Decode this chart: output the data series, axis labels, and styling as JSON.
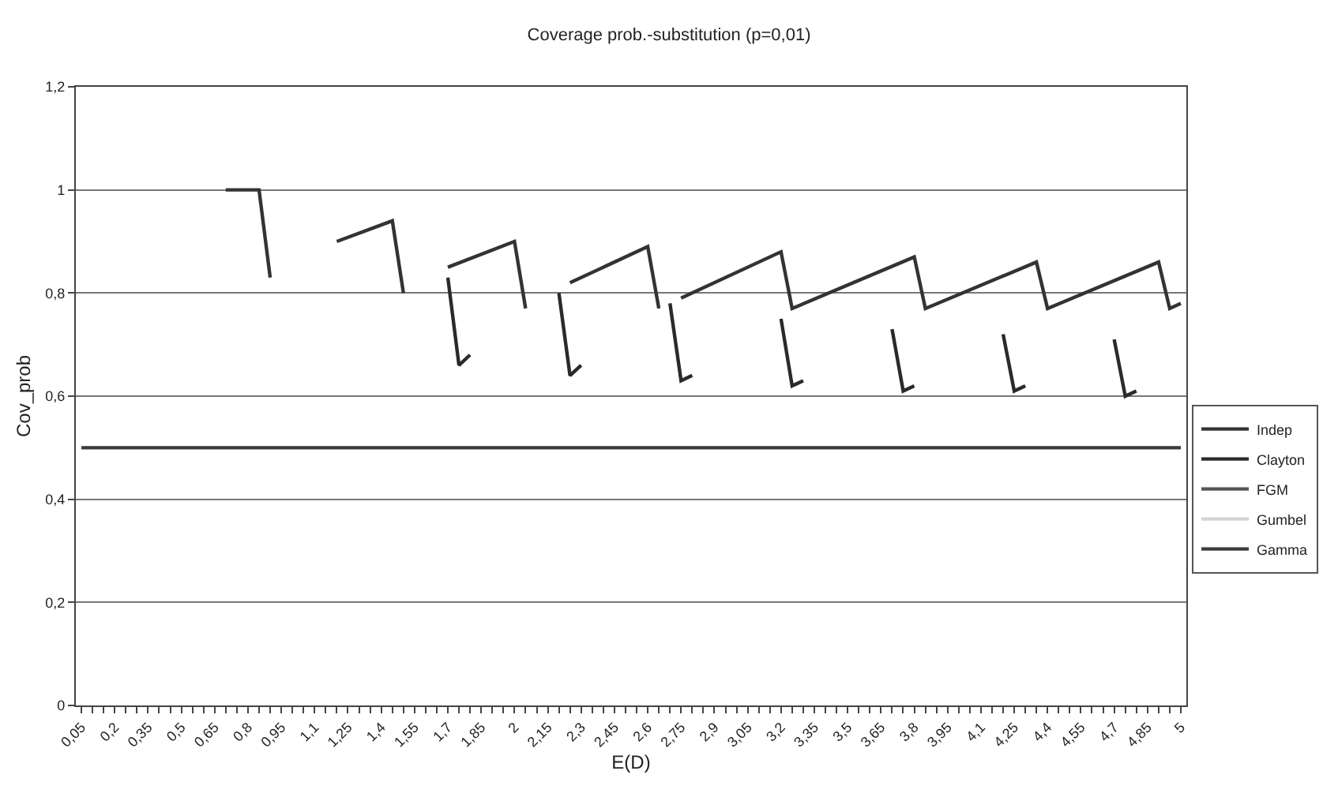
{
  "chart_data": {
    "type": "line",
    "title": "Coverage prob.-substitution (p=0,01)",
    "xlabel": "E(D)",
    "ylabel": "Cov_prob",
    "xlim": [
      0.025,
      5.025
    ],
    "xticks": [
      {
        "value": 0.05,
        "label": "0,05"
      },
      {
        "value": 0.1,
        "label": null
      },
      {
        "value": 0.15,
        "label": null
      },
      {
        "value": 0.2,
        "label": "0,2"
      },
      {
        "value": 0.25,
        "label": null
      },
      {
        "value": 0.3,
        "label": null
      },
      {
        "value": 0.35,
        "label": "0,35"
      },
      {
        "value": 0.4,
        "label": null
      },
      {
        "value": 0.45,
        "label": null
      },
      {
        "value": 0.5,
        "label": "0,5"
      },
      {
        "value": 0.55,
        "label": null
      },
      {
        "value": 0.6,
        "label": null
      },
      {
        "value": 0.65,
        "label": "0,65"
      },
      {
        "value": 0.7,
        "label": null
      },
      {
        "value": 0.75,
        "label": null
      },
      {
        "value": 0.8,
        "label": "0,8"
      },
      {
        "value": 0.85,
        "label": null
      },
      {
        "value": 0.9,
        "label": null
      },
      {
        "value": 0.95,
        "label": "0,95"
      },
      {
        "value": 1.0,
        "label": null
      },
      {
        "value": 1.05,
        "label": null
      },
      {
        "value": 1.1,
        "label": "1,1"
      },
      {
        "value": 1.15,
        "label": null
      },
      {
        "value": 1.2,
        "label": null
      },
      {
        "value": 1.25,
        "label": "1,25"
      },
      {
        "value": 1.3,
        "label": null
      },
      {
        "value": 1.35,
        "label": null
      },
      {
        "value": 1.4,
        "label": "1,4"
      },
      {
        "value": 1.45,
        "label": null
      },
      {
        "value": 1.5,
        "label": null
      },
      {
        "value": 1.55,
        "label": "1,55"
      },
      {
        "value": 1.6,
        "label": null
      },
      {
        "value": 1.65,
        "label": null
      },
      {
        "value": 1.7,
        "label": "1,7"
      },
      {
        "value": 1.75,
        "label": null
      },
      {
        "value": 1.8,
        "label": null
      },
      {
        "value": 1.85,
        "label": "1,85"
      },
      {
        "value": 1.9,
        "label": null
      },
      {
        "value": 1.95,
        "label": null
      },
      {
        "value": 2.0,
        "label": "2"
      },
      {
        "value": 2.05,
        "label": null
      },
      {
        "value": 2.1,
        "label": null
      },
      {
        "value": 2.15,
        "label": "2,15"
      },
      {
        "value": 2.2,
        "label": null
      },
      {
        "value": 2.25,
        "label": null
      },
      {
        "value": 2.3,
        "label": "2,3"
      },
      {
        "value": 2.35,
        "label": null
      },
      {
        "value": 2.4,
        "label": null
      },
      {
        "value": 2.45,
        "label": "2,45"
      },
      {
        "value": 2.5,
        "label": null
      },
      {
        "value": 2.55,
        "label": null
      },
      {
        "value": 2.6,
        "label": "2,6"
      },
      {
        "value": 2.65,
        "label": null
      },
      {
        "value": 2.7,
        "label": null
      },
      {
        "value": 2.75,
        "label": "2,75"
      },
      {
        "value": 2.8,
        "label": null
      },
      {
        "value": 2.85,
        "label": null
      },
      {
        "value": 2.9,
        "label": "2,9"
      },
      {
        "value": 2.95,
        "label": null
      },
      {
        "value": 3.0,
        "label": null
      },
      {
        "value": 3.05,
        "label": "3,05"
      },
      {
        "value": 3.1,
        "label": null
      },
      {
        "value": 3.15,
        "label": null
      },
      {
        "value": 3.2,
        "label": "3,2"
      },
      {
        "value": 3.25,
        "label": null
      },
      {
        "value": 3.3,
        "label": null
      },
      {
        "value": 3.35,
        "label": "3,35"
      },
      {
        "value": 3.4,
        "label": null
      },
      {
        "value": 3.45,
        "label": null
      },
      {
        "value": 3.5,
        "label": "3,5"
      },
      {
        "value": 3.55,
        "label": null
      },
      {
        "value": 3.6,
        "label": null
      },
      {
        "value": 3.65,
        "label": "3,65"
      },
      {
        "value": 3.7,
        "label": null
      },
      {
        "value": 3.75,
        "label": null
      },
      {
        "value": 3.8,
        "label": "3,8"
      },
      {
        "value": 3.85,
        "label": null
      },
      {
        "value": 3.9,
        "label": null
      },
      {
        "value": 3.95,
        "label": "3,95"
      },
      {
        "value": 4.0,
        "label": null
      },
      {
        "value": 4.05,
        "label": null
      },
      {
        "value": 4.1,
        "label": "4,1"
      },
      {
        "value": 4.15,
        "label": null
      },
      {
        "value": 4.2,
        "label": null
      },
      {
        "value": 4.25,
        "label": "4,25"
      },
      {
        "value": 4.3,
        "label": null
      },
      {
        "value": 4.35,
        "label": null
      },
      {
        "value": 4.4,
        "label": "4,4"
      },
      {
        "value": 4.45,
        "label": null
      },
      {
        "value": 4.5,
        "label": null
      },
      {
        "value": 4.55,
        "label": "4,55"
      },
      {
        "value": 4.6,
        "label": null
      },
      {
        "value": 4.65,
        "label": null
      },
      {
        "value": 4.7,
        "label": "4,7"
      },
      {
        "value": 4.75,
        "label": null
      },
      {
        "value": 4.8,
        "label": null
      },
      {
        "value": 4.85,
        "label": "4,85"
      },
      {
        "value": 4.9,
        "label": null
      },
      {
        "value": 4.95,
        "label": null
      },
      {
        "value": 5.0,
        "label": "5"
      }
    ],
    "ylim": [
      0,
      1.2
    ],
    "yticks": [
      0,
      {
        "value": 0.2,
        "label": "0,2"
      },
      {
        "value": 0.4,
        "label": "0,4"
      },
      {
        "value": 0.6,
        "label": "0,6"
      },
      {
        "value": 0.8,
        "label": "0,8"
      },
      1,
      {
        "value": 1.2,
        "label": "1,2"
      }
    ],
    "grid": "y",
    "legend": "right",
    "marker": "none",
    "line_style": "solid",
    "series": [
      {
        "name": "Indep",
        "color": "#333333",
        "x": [
          0.7,
          0.85,
          0.9,
          1.0,
          1.2,
          1.45,
          1.5,
          1.6,
          1.7,
          2.0,
          2.05,
          2.15,
          2.25,
          2.6,
          2.65,
          2.7,
          2.75,
          3.2,
          3.25,
          3.8,
          3.85,
          4.35,
          4.4,
          4.9,
          4.95,
          5.0
        ],
        "values": [
          1,
          1,
          0.83,
          null,
          0.9,
          0.94,
          0.8,
          null,
          0.85,
          0.9,
          0.77,
          null,
          0.82,
          0.89,
          0.77,
          null,
          0.79,
          0.88,
          0.77,
          0.87,
          0.77,
          0.86,
          0.77,
          0.86,
          0.77,
          0.78
        ]
      },
      {
        "name": "Clayton",
        "color": "#2a2a2a",
        "x": [
          1.7,
          1.75,
          1.8,
          1.9,
          2.2,
          2.25,
          2.3,
          2.4,
          2.7,
          2.75,
          2.8,
          2.9,
          3.2,
          3.25,
          3.3,
          3.4,
          3.7,
          3.75,
          3.8,
          3.9,
          4.2,
          4.25,
          4.3,
          4.4,
          4.7,
          4.75,
          4.8
        ],
        "values": [
          0.83,
          0.66,
          0.68,
          null,
          0.8,
          0.64,
          0.66,
          null,
          0.78,
          0.63,
          0.64,
          null,
          0.75,
          0.62,
          0.63,
          null,
          0.73,
          0.61,
          0.62,
          null,
          0.72,
          0.61,
          0.62,
          null,
          0.71,
          0.6,
          0.61
        ]
      },
      {
        "name": "FGM",
        "color": "#555555"
      },
      {
        "name": "Gumbel",
        "color": "#d4d4d4"
      },
      {
        "name": "Gamma",
        "color": "#3c3c3c",
        "x": [
          0.05,
          5.0
        ],
        "values": [
          0.5,
          0.5
        ]
      }
    ]
  }
}
